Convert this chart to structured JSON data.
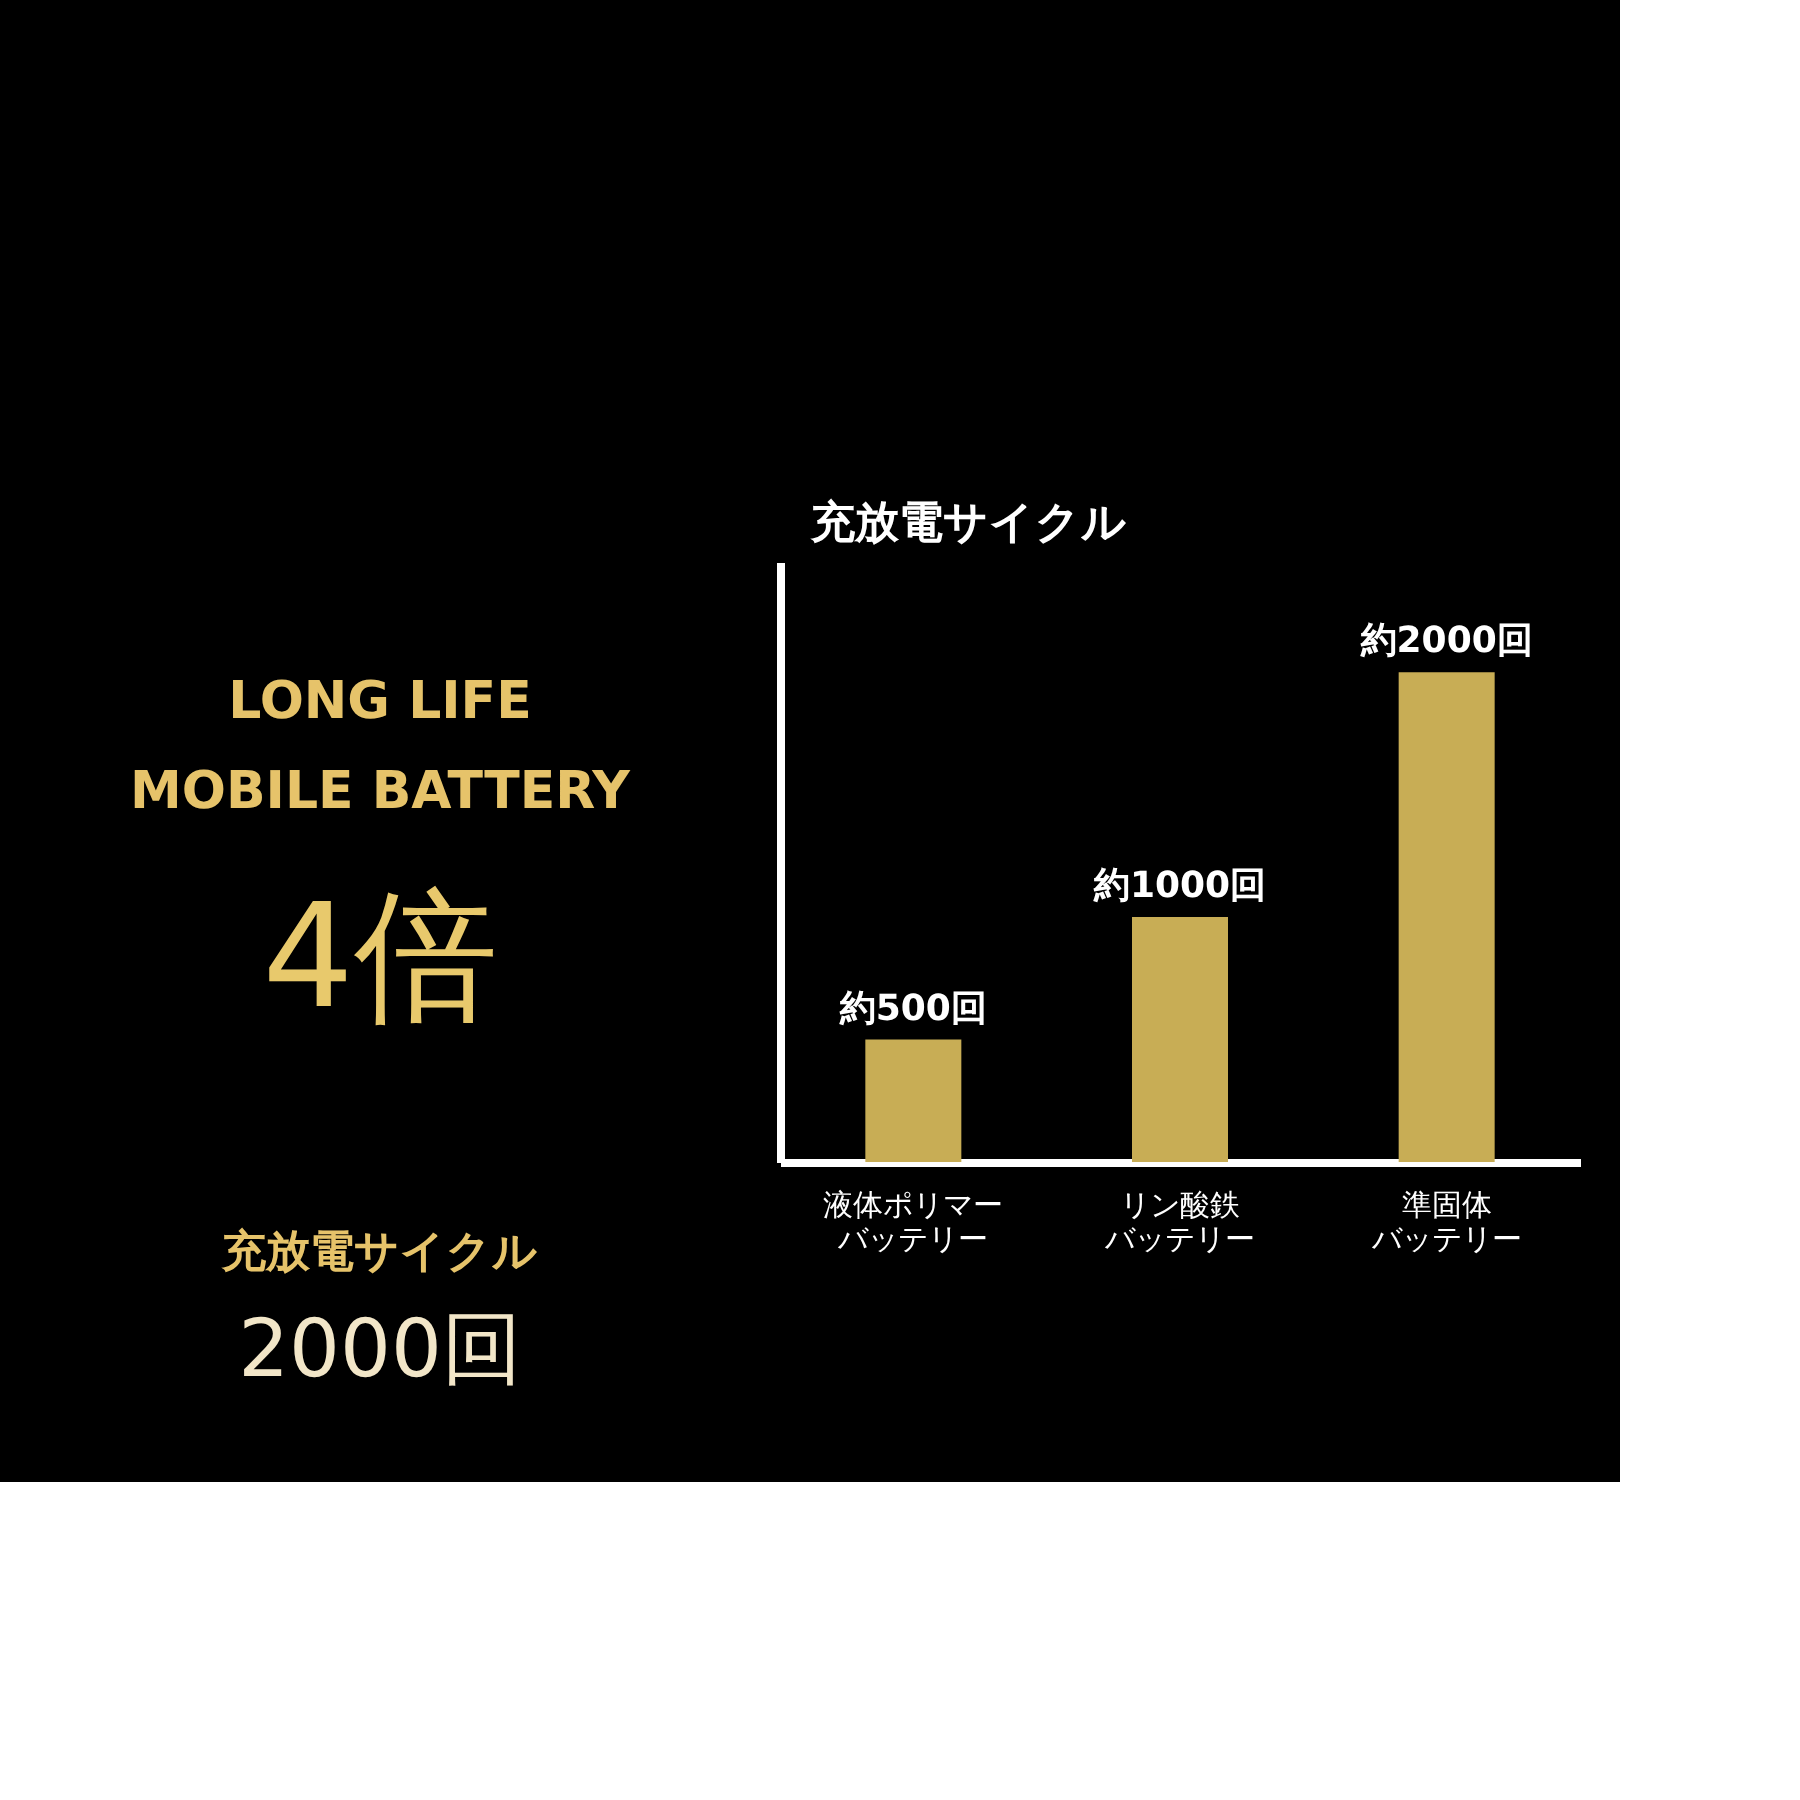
{
  "chart_data": {
    "type": "bar",
    "ylabel": "充放電サイクル",
    "categories": [
      "液体ポリマーバッテリー",
      "リン酸鉄バッテリー",
      "準固体バッテリー"
    ],
    "values": [
      500,
      1000,
      2000
    ],
    "color": "#c8ad55",
    "value_labels": [
      "約500回",
      "約1000回",
      "約2000回"
    ],
    "ylim": [
      0,
      2450
    ],
    "grid": false,
    "annotations": [
      "LONG LIFE",
      "MOBILE BATTERY",
      "4倍",
      "充放電サイクル",
      "2000回"
    ]
  }
}
